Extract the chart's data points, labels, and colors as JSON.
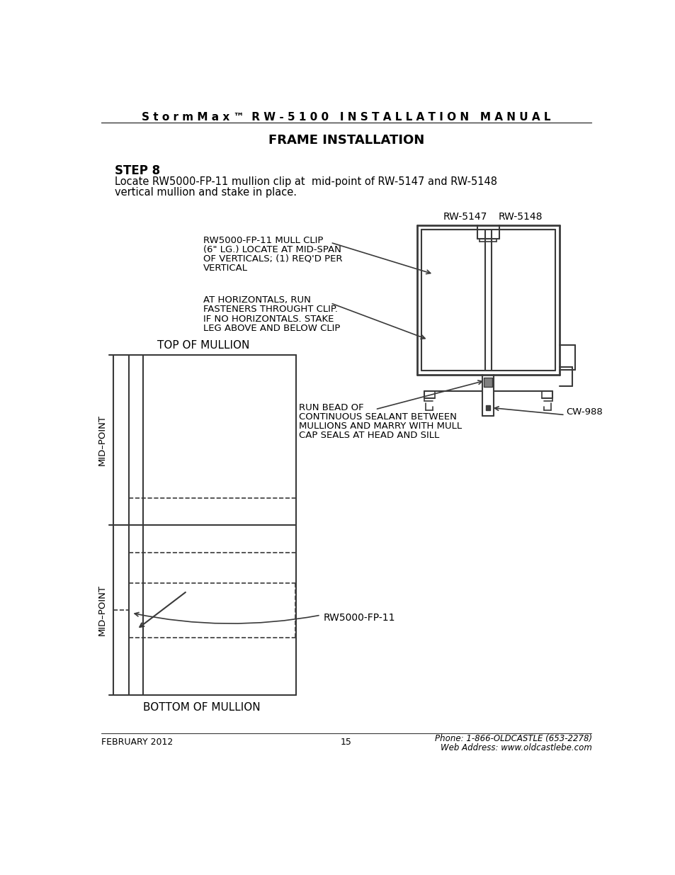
{
  "title_line": "S t o r m M a x ™  R W - 5 1 0 0   I N S T A L L A T I O N   M A N U A L",
  "subtitle": "FRAME INSTALLATION",
  "step_label": "STEP 8",
  "step_text1": "Locate RW5000-FP-11 mullion clip at  mid-point of RW-5147 and RW-5148",
  "step_text2": "vertical mullion and stake in place.",
  "annotation1_lines": [
    "RW5000-FP-11 MULL CLIP",
    "(6\" LG.) LOCATE AT MID-SPAN",
    "OF VERTICALS; (1) REQ'D PER",
    "VERTICAL"
  ],
  "annotation2_lines": [
    "AT HORIZONTALS, RUN",
    "FASTENERS THROUGHT CLIP.",
    "IF NO HORIZONTALS. STAKE",
    "LEG ABOVE AND BELOW CLIP"
  ],
  "annotation3_lines": [
    "RUN BEAD OF",
    "CONTINUOUS SEALANT BETWEEN",
    "MULLIONS AND MARRY WITH MULL",
    "CAP SEALS AT HEAD AND SILL"
  ],
  "label_rw5147": "RW-5147",
  "label_rw5148": "RW-5148",
  "label_cw988": "CW-988",
  "label_rw5000": "RW5000-FP-11",
  "label_top": "TOP OF MULLION",
  "label_bottom": "BOTTOM OF MULLION",
  "label_mid1": "MID–POINT",
  "label_mid2": "MID–POINT",
  "footer_left": "FEBRUARY 2012",
  "footer_center": "15",
  "footer_right1": "Phone: 1-866-OLDCASTLE (653-2278)",
  "footer_right2": "Web Address: www.oldcastlebe.com",
  "bg_color": "#ffffff",
  "line_color": "#3a3a3a",
  "text_color": "#000000"
}
